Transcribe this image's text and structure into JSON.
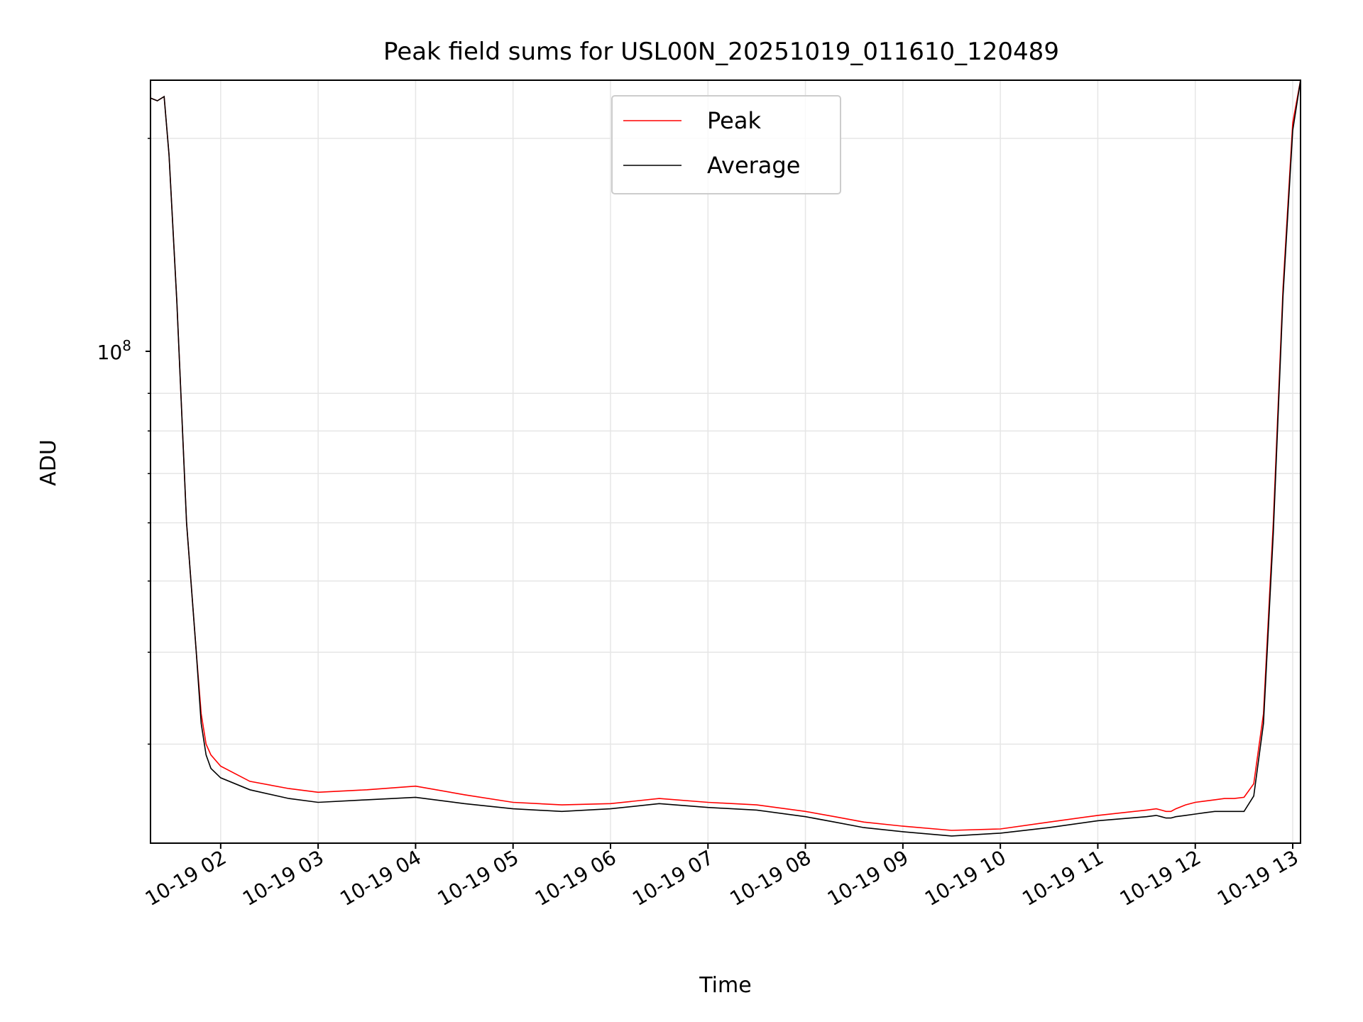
{
  "chart_data": {
    "type": "line",
    "title": "Peak field sums for USL00N_20251019_011610_120489",
    "xlabel": "Time",
    "ylabel": "ADU",
    "y_scale": "log",
    "y_major_tick_label": "10",
    "y_major_tick_exponent": "8",
    "y_major_tick_value": 100000000,
    "ylim": [
      22000000,
      240000000
    ],
    "xlim_hours": [
      1.28,
      13.08
    ],
    "grid": true,
    "legend_position": "upper center",
    "x_tick_hours": [
      2,
      3,
      4,
      5,
      6,
      7,
      8,
      9,
      10,
      11,
      12,
      13
    ],
    "x_tick_labels": [
      "10-19 02",
      "10-19 03",
      "10-19 04",
      "10-19 05",
      "10-19 06",
      "10-19 07",
      "10-19 08",
      "10-19 09",
      "10-19 10",
      "10-19 11",
      "10-19 12",
      "10-19 13"
    ],
    "series": [
      {
        "name": "Peak",
        "color": "#ff0000",
        "x_hours": [
          1.28,
          1.35,
          1.42,
          1.47,
          1.55,
          1.65,
          1.75,
          1.8,
          1.85,
          1.9,
          2.0,
          2.3,
          2.7,
          3.0,
          3.5,
          4.0,
          4.5,
          5.0,
          5.5,
          6.0,
          6.5,
          7.0,
          7.5,
          8.0,
          8.3,
          8.6,
          9.0,
          9.5,
          10.0,
          10.5,
          11.0,
          11.5,
          11.6,
          11.65,
          11.7,
          11.75,
          11.8,
          11.9,
          12.0,
          12.1,
          12.2,
          12.3,
          12.4,
          12.5,
          12.6,
          12.7,
          12.8,
          12.9,
          13.0,
          13.08
        ],
        "values": [
          227000000,
          225000000,
          228000000,
          190000000,
          120000000,
          60000000,
          40000000,
          33000000,
          30000000,
          29000000,
          28000000,
          26700000,
          26100000,
          25800000,
          26000000,
          26300000,
          25600000,
          25000000,
          24800000,
          24900000,
          25300000,
          25000000,
          24800000,
          24300000,
          23900000,
          23500000,
          23200000,
          22900000,
          23000000,
          23500000,
          24000000,
          24400000,
          24500000,
          24400000,
          24300000,
          24300000,
          24500000,
          24800000,
          25000000,
          25100000,
          25200000,
          25300000,
          25300000,
          25400000,
          26500000,
          33000000,
          60000000,
          125000000,
          210000000,
          240000000
        ]
      },
      {
        "name": "Average",
        "color": "#000000",
        "x_hours": [
          1.28,
          1.35,
          1.42,
          1.47,
          1.55,
          1.65,
          1.75,
          1.8,
          1.85,
          1.9,
          2.0,
          2.3,
          2.7,
          3.0,
          3.5,
          4.0,
          4.5,
          5.0,
          5.5,
          6.0,
          6.5,
          7.0,
          7.5,
          8.0,
          8.3,
          8.6,
          9.0,
          9.5,
          10.0,
          10.5,
          11.0,
          11.5,
          11.6,
          11.65,
          11.7,
          11.75,
          11.8,
          11.9,
          12.0,
          12.1,
          12.2,
          12.3,
          12.4,
          12.5,
          12.6,
          12.7,
          12.8,
          12.9,
          13.0,
          13.08
        ],
        "values": [
          227000000,
          225000000,
          228000000,
          190000000,
          120000000,
          60000000,
          40000000,
          32000000,
          29000000,
          27800000,
          27000000,
          26000000,
          25300000,
          25000000,
          25200000,
          25400000,
          24900000,
          24500000,
          24300000,
          24500000,
          24900000,
          24600000,
          24400000,
          23900000,
          23500000,
          23100000,
          22800000,
          22500000,
          22700000,
          23100000,
          23600000,
          23900000,
          24000000,
          23900000,
          23800000,
          23800000,
          23900000,
          24000000,
          24100000,
          24200000,
          24300000,
          24300000,
          24300000,
          24300000,
          25500000,
          32000000,
          58000000,
          122000000,
          205000000,
          240000000
        ]
      }
    ]
  }
}
